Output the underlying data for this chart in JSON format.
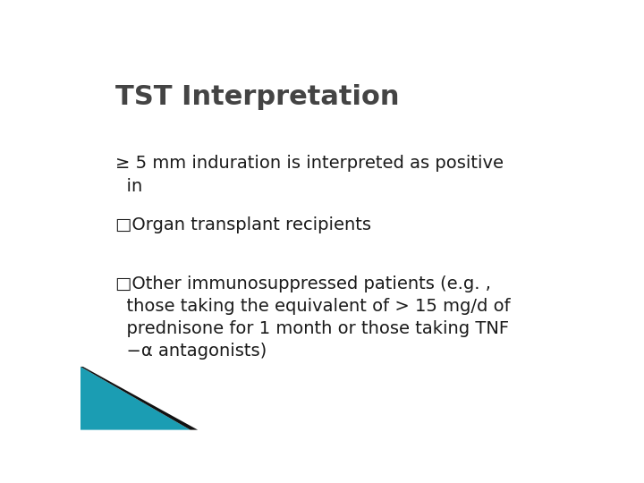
{
  "title": "TST Interpretation",
  "title_fontsize": 22,
  "title_color": "#444444",
  "title_weight": "bold",
  "body_color": "#1a1a1a",
  "body_fontsize": 14,
  "background_color": "#ffffff",
  "line1": "≥ 5 mm induration is interpreted as positive\n  in",
  "line2": "□Organ transplant recipients",
  "line3_part1": "□Other immunosuppressed patients (e.g. ,",
  "line3_part2": "  those taking the equivalent of > 15 mg/d of",
  "line3_part3": "  prednisone for 1 month or those taking TNF",
  "line3_part4": "  −α antagonists)",
  "teal_color": "#1b9db3",
  "teal_dark": "#0d7a8a"
}
